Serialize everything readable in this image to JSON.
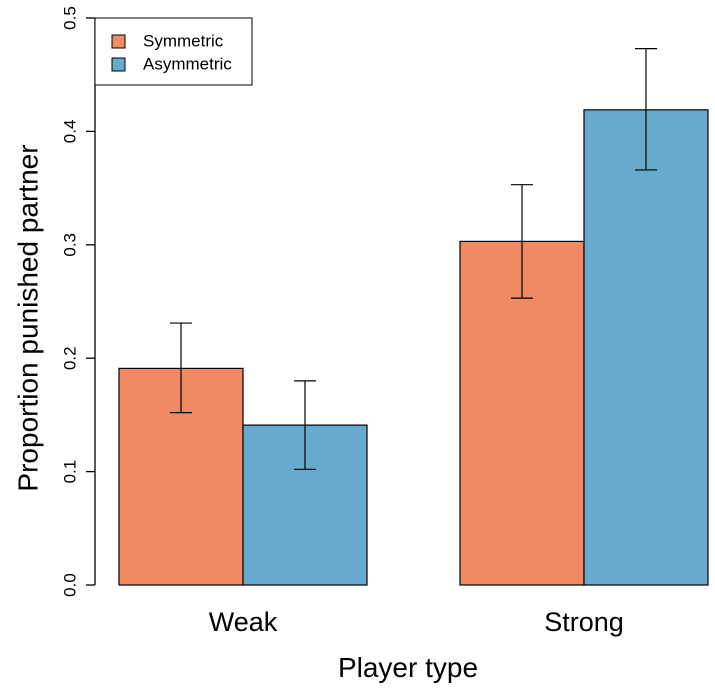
{
  "chart_data": {
    "type": "bar",
    "title": "",
    "xlabel": "Player type",
    "ylabel": "Proportion punished partner",
    "categories": [
      "Weak",
      "Strong"
    ],
    "ylim": [
      0,
      0.5
    ],
    "yticks": [
      0.0,
      0.1,
      0.2,
      0.3,
      0.4,
      0.5
    ],
    "ytick_labels": [
      "0.0",
      "0.1",
      "0.2",
      "0.3",
      "0.4",
      "0.5"
    ],
    "grid": false,
    "legend": {
      "placement": "top-left",
      "entries": [
        "Symmetric",
        "Asymmetric"
      ]
    },
    "series": [
      {
        "name": "Symmetric",
        "color": "#EF8A62",
        "values": [
          0.191,
          0.303
        ],
        "error_low": [
          0.152,
          0.253
        ],
        "error_high": [
          0.231,
          0.353
        ]
      },
      {
        "name": "Asymmetric",
        "color": "#67A9CF",
        "values": [
          0.141,
          0.419
        ],
        "error_low": [
          0.102,
          0.366
        ],
        "error_high": [
          0.18,
          0.473
        ]
      }
    ]
  }
}
